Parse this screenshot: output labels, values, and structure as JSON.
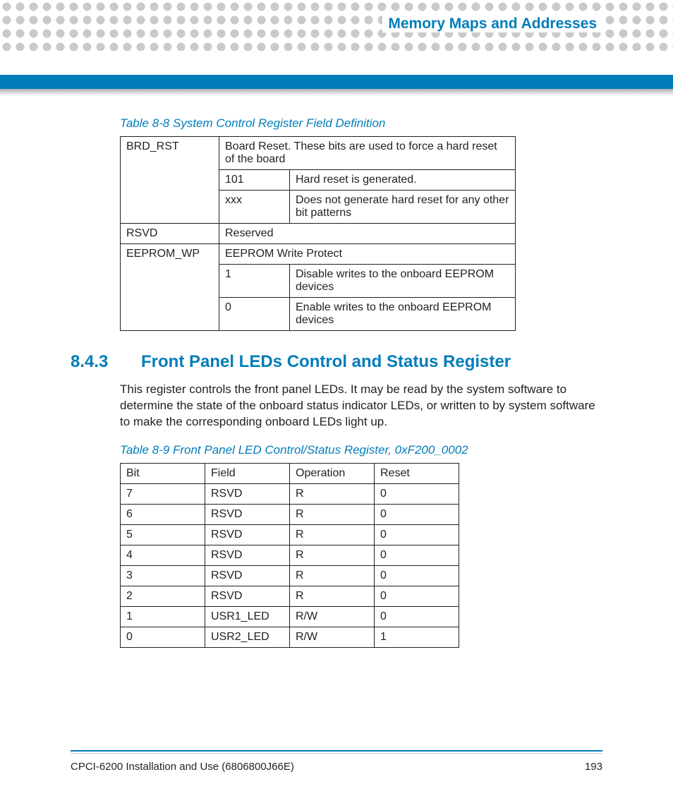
{
  "header": {
    "chapter_title": "Memory Maps and Addresses"
  },
  "table1": {
    "caption": "Table 8-8 System Control Register Field Definition",
    "rows": [
      {
        "field": "BRD_RST",
        "desc_full": "Board Reset. These bits are used to force a hard reset of the board",
        "subrows": [
          {
            "val": "101",
            "desc": "Hard reset is generated."
          },
          {
            "val": "xxx",
            "desc": "Does not generate hard reset for any other bit patterns"
          }
        ]
      },
      {
        "field": "RSVD",
        "desc_full": "Reserved",
        "subrows": []
      },
      {
        "field": "EEPROM_WP",
        "desc_full": "EEPROM Write Protect",
        "subrows": [
          {
            "val": "1",
            "desc": "Disable writes to the onboard EEPROM devices"
          },
          {
            "val": "0",
            "desc": "Enable writes to the onboard EEPROM devices"
          }
        ]
      }
    ]
  },
  "section": {
    "number": "8.4.3",
    "title": "Front Panel LEDs Control and Status Register",
    "body": " This register controls the front panel LEDs. It may be read by the system software to determine the state of the onboard status indicator LEDs, or written to by system software to make the corresponding onboard LEDs light up."
  },
  "table2": {
    "caption": "Table 8-9 Front Panel LED Control/Status Register, 0xF200_0002",
    "headers": [
      "Bit",
      "Field",
      "Operation",
      "Reset"
    ],
    "rows": [
      [
        "7",
        "RSVD",
        "R",
        "0"
      ],
      [
        "6",
        "RSVD",
        "R",
        "0"
      ],
      [
        "5",
        "RSVD",
        "R",
        "0"
      ],
      [
        "4",
        "RSVD",
        "R",
        "0"
      ],
      [
        "3",
        "RSVD",
        "R",
        "0"
      ],
      [
        "2",
        "RSVD",
        "R",
        "0"
      ],
      [
        "1",
        "USR1_LED",
        "R/W",
        "0"
      ],
      [
        "0",
        "USR2_LED",
        "R/W",
        "1"
      ]
    ]
  },
  "footer": {
    "doc_title": "CPCI-6200 Installation and Use (6806800J66E)",
    "page_number": "193"
  }
}
